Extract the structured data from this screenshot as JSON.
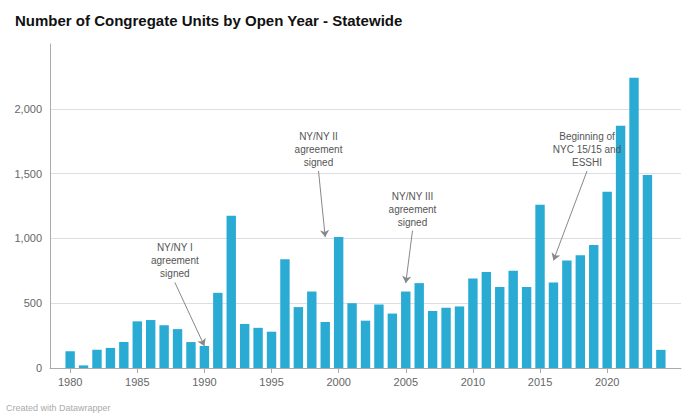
{
  "chart_data": {
    "type": "bar",
    "title": "Number of Congregate Units by Open Year - Statewide",
    "x": [
      1980,
      1981,
      1982,
      1983,
      1984,
      1985,
      1986,
      1987,
      1988,
      1989,
      1990,
      1991,
      1992,
      1993,
      1994,
      1995,
      1996,
      1997,
      1998,
      1999,
      2000,
      2001,
      2002,
      2003,
      2004,
      2005,
      2006,
      2007,
      2008,
      2009,
      2010,
      2011,
      2012,
      2013,
      2014,
      2015,
      2016,
      2017,
      2018,
      2019,
      2020,
      2021,
      2022,
      2023,
      2024
    ],
    "values": [
      130,
      20,
      140,
      155,
      200,
      360,
      370,
      330,
      300,
      200,
      170,
      580,
      1175,
      340,
      310,
      280,
      840,
      470,
      590,
      355,
      1010,
      500,
      365,
      490,
      420,
      590,
      655,
      440,
      465,
      475,
      690,
      740,
      625,
      750,
      625,
      1260,
      660,
      830,
      870,
      950,
      1360,
      1870,
      2240,
      1490,
      140
    ],
    "color": "#29ABD4",
    "xlim": [
      1978.5,
      2025.5
    ],
    "xticks": [
      1980,
      1985,
      1990,
      1995,
      2000,
      2005,
      2010,
      2015,
      2020
    ],
    "ylim": [
      0,
      2500
    ],
    "yticks": [
      0,
      500,
      {
        "value": 1000,
        "label": "1,000"
      },
      {
        "value": 1500,
        "label": "1,500"
      },
      {
        "value": 2000,
        "label": "2,000"
      }
    ],
    "grid": true,
    "annotations": [
      {
        "text": "NY/NY I\nagreement\nsigned",
        "x": 1990,
        "y": 170,
        "text_x": 1987.8,
        "text_y": 660
      },
      {
        "text": "NY/NY II\nagreement\nsigned",
        "x": 1999,
        "y": 1010,
        "text_x": 1998.5,
        "text_y": 1520
      },
      {
        "text": "NY/NY III\nagreement\nsigned",
        "x": 2005,
        "y": 655,
        "text_x": 2005.5,
        "text_y": 1060
      },
      {
        "text": "Beginning of\nNYC 15/15 and\nESSHI",
        "x": 2016,
        "y": 830,
        "text_x": 2018.5,
        "text_y": 1520
      }
    ],
    "footer": "Created with Datawrapper"
  }
}
